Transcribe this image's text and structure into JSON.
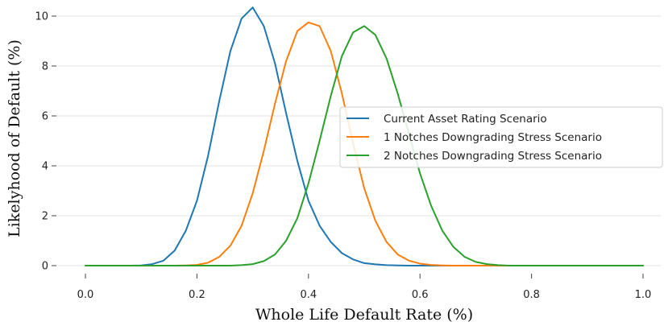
{
  "chart_data": {
    "type": "line",
    "title": "",
    "xlabel": "Whole Life Default Rate (%)",
    "ylabel": "Likelyhood of Default (%)",
    "xlim": [
      0.0,
      1.0
    ],
    "ylim": [
      0,
      10.5
    ],
    "xticks": [
      "0.0",
      "0.2",
      "0.4",
      "0.6",
      "0.8",
      "1.0"
    ],
    "yticks": [
      "0",
      "2",
      "4",
      "6",
      "8",
      "10"
    ],
    "grid": "horizontal",
    "legend_position": "center-right",
    "x": [
      0.0,
      0.02,
      0.04,
      0.06,
      0.08,
      0.1,
      0.12,
      0.14,
      0.16,
      0.18,
      0.2,
      0.22,
      0.24,
      0.26,
      0.28,
      0.3,
      0.32,
      0.34,
      0.36,
      0.38,
      0.4,
      0.42,
      0.44,
      0.46,
      0.48,
      0.5,
      0.52,
      0.54,
      0.56,
      0.58,
      0.6,
      0.62,
      0.64,
      0.66,
      0.68,
      0.7,
      0.72,
      0.74,
      0.76,
      0.78,
      0.8,
      0.82,
      0.84,
      0.86,
      0.88,
      0.9,
      0.92,
      0.94,
      0.96,
      0.98,
      1.0
    ],
    "series": [
      {
        "name": "Current Asset Rating Scenario",
        "color": "#1f77b4",
        "values": [
          0.0,
          0.0,
          0.0,
          0.0,
          0.0,
          0.01,
          0.06,
          0.2,
          0.6,
          1.4,
          2.6,
          4.4,
          6.6,
          8.6,
          9.9,
          10.35,
          9.6,
          8.1,
          6.1,
          4.2,
          2.6,
          1.6,
          0.95,
          0.5,
          0.25,
          0.1,
          0.05,
          0.02,
          0.01,
          0.0,
          0.0,
          0.0,
          0.0,
          0.0,
          0.0,
          0.0,
          0.0,
          0.0,
          0.0,
          0.0,
          0.0,
          0.0,
          0.0,
          0.0,
          0.0,
          0.0,
          0.0,
          0.0,
          0.0,
          0.0,
          0.0
        ]
      },
      {
        "name": "1 Notches Downgrading Stress Scenario",
        "color": "#ff7f0e",
        "values": [
          0.0,
          0.0,
          0.0,
          0.0,
          0.0,
          0.0,
          0.0,
          0.0,
          0.0,
          0.01,
          0.03,
          0.12,
          0.35,
          0.8,
          1.6,
          2.9,
          4.6,
          6.5,
          8.2,
          9.4,
          9.75,
          9.6,
          8.6,
          6.9,
          4.9,
          3.1,
          1.8,
          0.95,
          0.45,
          0.2,
          0.08,
          0.03,
          0.01,
          0.0,
          0.0,
          0.0,
          0.0,
          0.0,
          0.0,
          0.0,
          0.0,
          0.0,
          0.0,
          0.0,
          0.0,
          0.0,
          0.0,
          0.0,
          0.0,
          0.0,
          0.0
        ]
      },
      {
        "name": "2 Notches Downgrading Stress Scenario",
        "color": "#2ca02c",
        "values": [
          0.0,
          0.0,
          0.0,
          0.0,
          0.0,
          0.0,
          0.0,
          0.0,
          0.0,
          0.0,
          0.0,
          0.0,
          0.0,
          0.0,
          0.02,
          0.06,
          0.18,
          0.45,
          1.0,
          1.9,
          3.3,
          5.0,
          6.8,
          8.4,
          9.35,
          9.6,
          9.25,
          8.3,
          6.9,
          5.3,
          3.7,
          2.4,
          1.4,
          0.75,
          0.35,
          0.15,
          0.06,
          0.02,
          0.0,
          0.0,
          0.0,
          0.0,
          0.0,
          0.0,
          0.0,
          0.0,
          0.0,
          0.0,
          0.0,
          0.0,
          0.0
        ]
      }
    ]
  }
}
